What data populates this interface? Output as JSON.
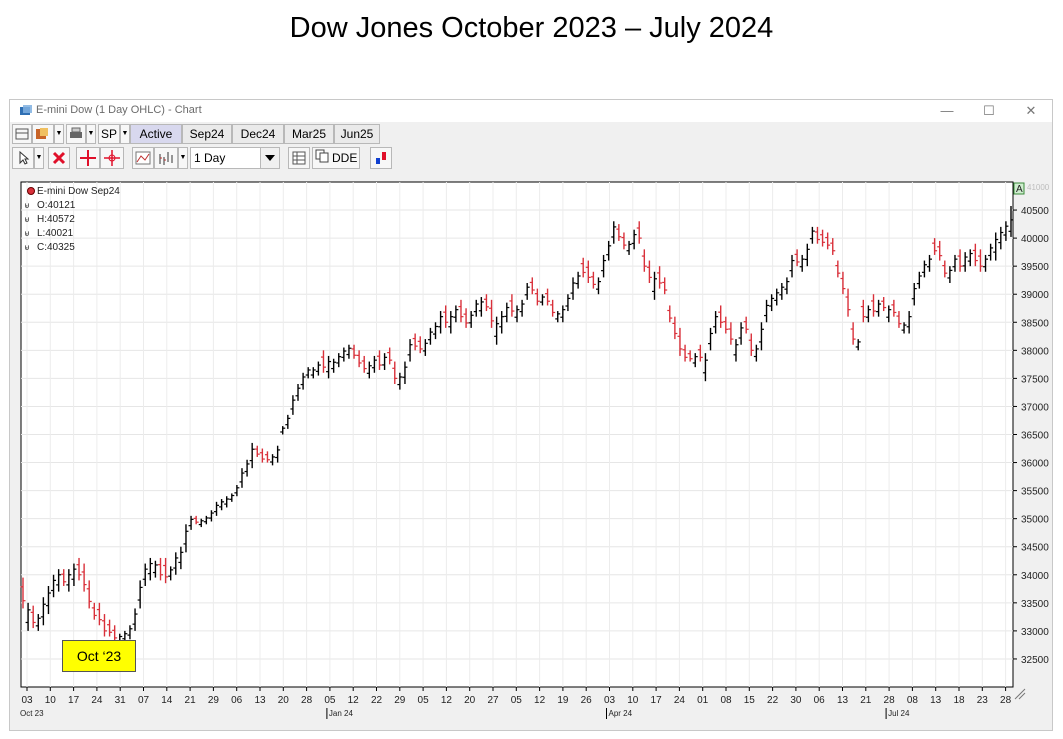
{
  "page": {
    "title": "Dow Jones October 2023 – July 2024"
  },
  "window": {
    "title": "E-mini Dow (1 Day OHLC) - Chart",
    "controls": {
      "minimize": "—",
      "maximize": "☐",
      "close": "✕"
    }
  },
  "toolbar": {
    "symbol_button": "SP",
    "tabs": [
      "Active",
      "Sep24",
      "Dec24",
      "Mar25",
      "Jun25"
    ],
    "active_tab": "Active",
    "interval_value": "1 Day",
    "dde_label": "DDE"
  },
  "annotation": {
    "label": "Oct ‘23",
    "color": "#ffff00"
  },
  "chart_data": {
    "type": "ohlc",
    "instrument": "E-mini Dow Sep24",
    "readout": {
      "open": "O:40121",
      "high": "H:40572",
      "low": "L:40021",
      "close": "C:40325"
    },
    "scale_marker": "A",
    "y_top_label": "41000",
    "ylim": [
      32000,
      41000
    ],
    "y_ticks": [
      32500,
      33000,
      33500,
      34000,
      34500,
      35000,
      35500,
      36000,
      36500,
      37000,
      37500,
      38000,
      38500,
      39000,
      39500,
      40000,
      40500
    ],
    "x_ticks": [
      "03",
      "10",
      "17",
      "24",
      "31",
      "07",
      "14",
      "21",
      "29",
      "06",
      "13",
      "20",
      "28",
      "05",
      "12",
      "22",
      "29",
      "05",
      "12",
      "20",
      "27",
      "05",
      "12",
      "19",
      "26",
      "03",
      "10",
      "17",
      "24",
      "01",
      "08",
      "15",
      "22",
      "30",
      "06",
      "13",
      "21",
      "28",
      "08",
      "13",
      "18",
      "23",
      "28"
    ],
    "month_labels": [
      {
        "label": "Oct 23",
        "tick": 0
      },
      {
        "label": "Jan 24",
        "tick": 13
      },
      {
        "label": "Apr 24",
        "tick": 25
      },
      {
        "label": "Jul 24",
        "tick": 37
      }
    ],
    "colors": {
      "up": "#000000",
      "down": "#d9303a"
    },
    "bars": [
      [
        33950,
        33400
      ],
      [
        33500,
        33000
      ],
      [
        33450,
        33050
      ],
      [
        33300,
        33000
      ],
      [
        33600,
        33100
      ],
      [
        33800,
        33300
      ],
      [
        34000,
        33600
      ],
      [
        34100,
        33700
      ],
      [
        34100,
        33800
      ],
      [
        34100,
        33700
      ],
      [
        34200,
        33800
      ],
      [
        34300,
        33900
      ],
      [
        34200,
        33700
      ],
      [
        33900,
        33400
      ],
      [
        33500,
        33200
      ],
      [
        33500,
        33100
      ],
      [
        33300,
        32900
      ],
      [
        33200,
        32900
      ],
      [
        33100,
        32800
      ],
      [
        32950,
        32750
      ],
      [
        33000,
        32800
      ],
      [
        33100,
        32850
      ],
      [
        33400,
        33000
      ],
      [
        33900,
        33400
      ],
      [
        34200,
        33800
      ],
      [
        34300,
        33900
      ],
      [
        34250,
        33950
      ],
      [
        34300,
        33900
      ],
      [
        34300,
        33850
      ],
      [
        34150,
        33900
      ],
      [
        34400,
        34000
      ],
      [
        34500,
        34100
      ],
      [
        34900,
        34400
      ],
      [
        35050,
        34800
      ],
      [
        35050,
        34900
      ],
      [
        35000,
        34850
      ],
      [
        35050,
        34900
      ],
      [
        35150,
        34950
      ],
      [
        35300,
        35050
      ],
      [
        35350,
        35150
      ],
      [
        35400,
        35200
      ],
      [
        35450,
        35300
      ],
      [
        35600,
        35400
      ],
      [
        35900,
        35550
      ],
      [
        36050,
        35750
      ],
      [
        36350,
        35900
      ],
      [
        36300,
        36100
      ],
      [
        36250,
        36000
      ],
      [
        36200,
        36000
      ],
      [
        36150,
        35950
      ],
      [
        36300,
        36000
      ],
      [
        36650,
        36500
      ],
      [
        36850,
        36600
      ],
      [
        37200,
        36850
      ],
      [
        37400,
        37100
      ],
      [
        37600,
        37300
      ],
      [
        37700,
        37500
      ],
      [
        37700,
        37500
      ],
      [
        37800,
        37550
      ],
      [
        38000,
        37600
      ],
      [
        37900,
        37500
      ],
      [
        37850,
        37600
      ],
      [
        37950,
        37700
      ],
      [
        38050,
        37800
      ],
      [
        38100,
        37850
      ],
      [
        38100,
        37850
      ],
      [
        38000,
        37700
      ],
      [
        37900,
        37600
      ],
      [
        37800,
        37500
      ],
      [
        37900,
        37600
      ],
      [
        38000,
        37650
      ],
      [
        37950,
        37650
      ],
      [
        38050,
        37750
      ],
      [
        37800,
        37400
      ],
      [
        37600,
        37300
      ],
      [
        37800,
        37400
      ],
      [
        38200,
        37800
      ],
      [
        38300,
        38000
      ],
      [
        38250,
        37950
      ],
      [
        38200,
        37900
      ],
      [
        38400,
        38100
      ],
      [
        38500,
        38200
      ],
      [
        38700,
        38300
      ],
      [
        38800,
        38400
      ],
      [
        38700,
        38300
      ],
      [
        38800,
        38500
      ],
      [
        38900,
        38500
      ],
      [
        38750,
        38400
      ],
      [
        38700,
        38400
      ],
      [
        38900,
        38600
      ],
      [
        38950,
        38600
      ],
      [
        39000,
        38700
      ],
      [
        38900,
        38400
      ],
      [
        38600,
        38100
      ],
      [
        38700,
        38300
      ],
      [
        38850,
        38500
      ],
      [
        39000,
        38600
      ],
      [
        38800,
        38500
      ],
      [
        38900,
        38600
      ],
      [
        39200,
        38900
      ],
      [
        39300,
        39000
      ],
      [
        39100,
        38800
      ],
      [
        39000,
        38800
      ],
      [
        39100,
        38800
      ],
      [
        38900,
        38600
      ],
      [
        38700,
        38500
      ],
      [
        38800,
        38500
      ],
      [
        39000,
        38700
      ],
      [
        39300,
        38900
      ],
      [
        39400,
        39100
      ],
      [
        39650,
        39300
      ],
      [
        39600,
        39200
      ],
      [
        39400,
        39100
      ],
      [
        39300,
        39000
      ],
      [
        39700,
        39300
      ],
      [
        39950,
        39600
      ],
      [
        40300,
        39900
      ],
      [
        40250,
        39950
      ],
      [
        40100,
        39800
      ],
      [
        39950,
        39700
      ],
      [
        40150,
        39800
      ],
      [
        40300,
        39900
      ],
      [
        39800,
        39400
      ],
      [
        39600,
        39200
      ],
      [
        39400,
        38900
      ],
      [
        39500,
        39100
      ],
      [
        39300,
        39000
      ],
      [
        38800,
        38500
      ],
      [
        38600,
        38200
      ],
      [
        38400,
        37900
      ],
      [
        38100,
        37800
      ],
      [
        38000,
        37800
      ],
      [
        37950,
        37700
      ],
      [
        38100,
        37800
      ],
      [
        37950,
        37450
      ],
      [
        38400,
        38000
      ],
      [
        38700,
        38300
      ],
      [
        38800,
        38400
      ],
      [
        38600,
        38300
      ],
      [
        38500,
        38100
      ],
      [
        38200,
        37800
      ],
      [
        38500,
        38100
      ],
      [
        38600,
        38300
      ],
      [
        38300,
        37900
      ],
      [
        38100,
        37800
      ],
      [
        38500,
        38000
      ],
      [
        38900,
        38500
      ],
      [
        39000,
        38700
      ],
      [
        39100,
        38800
      ],
      [
        39200,
        38900
      ],
      [
        39300,
        39000
      ],
      [
        39700,
        39300
      ],
      [
        39800,
        39500
      ],
      [
        39700,
        39400
      ],
      [
        39900,
        39500
      ],
      [
        40200,
        39900
      ],
      [
        40200,
        39900
      ],
      [
        40150,
        39850
      ],
      [
        40100,
        39800
      ],
      [
        40000,
        39700
      ],
      [
        39600,
        39300
      ],
      [
        39400,
        39000
      ],
      [
        39100,
        38600
      ],
      [
        38500,
        38100
      ],
      [
        38200,
        38000
      ],
      [
        38900,
        38500
      ],
      [
        38800,
        38500
      ],
      [
        39000,
        38600
      ],
      [
        38900,
        38600
      ],
      [
        38950,
        38700
      ],
      [
        38800,
        38500
      ],
      [
        38900,
        38600
      ],
      [
        38700,
        38400
      ],
      [
        38500,
        38300
      ],
      [
        38700,
        38300
      ],
      [
        39200,
        38800
      ],
      [
        39400,
        39100
      ],
      [
        39600,
        39300
      ],
      [
        39700,
        39400
      ],
      [
        40000,
        39700
      ],
      [
        39950,
        39600
      ],
      [
        39600,
        39300
      ],
      [
        39500,
        39200
      ],
      [
        39700,
        39400
      ],
      [
        39800,
        39400
      ],
      [
        39750,
        39400
      ],
      [
        39800,
        39500
      ],
      [
        39900,
        39500
      ],
      [
        39800,
        39400
      ],
      [
        39700,
        39400
      ],
      [
        39900,
        39600
      ],
      [
        40100,
        39600
      ],
      [
        40200,
        39800
      ],
      [
        40300,
        39950
      ],
      [
        40572,
        40021
      ]
    ]
  }
}
